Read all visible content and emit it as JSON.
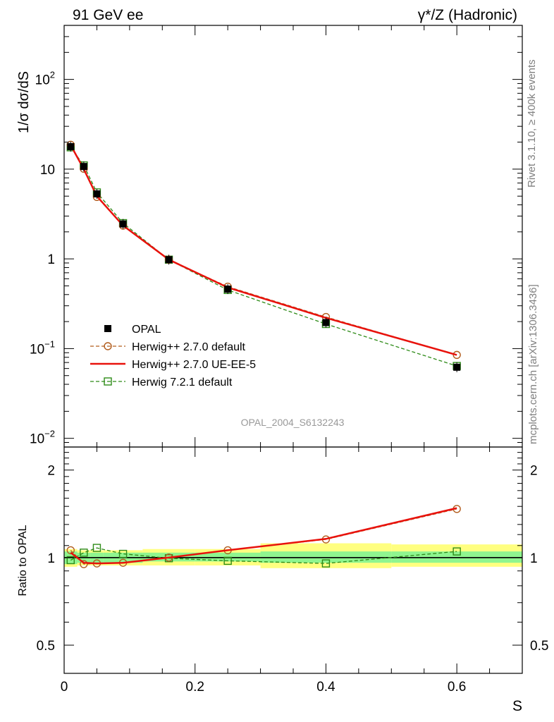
{
  "header": {
    "left": "91 GeV ee",
    "right": "γ*/Z (Hadronic)"
  },
  "side_labels": {
    "rivet": "Rivet 3.1.10, ≥ 400k events",
    "source": "mcplots.cern.ch [arXiv:1306.3436]"
  },
  "analysis_label": "OPAL_2004_S6132243",
  "colors": {
    "data": "#000000",
    "herwigpp_default": "#b25d1e",
    "herwigpp_ueee5": "#e8120c",
    "herwig7": "#2e8b18",
    "band_inner": "#8ff58f",
    "band_outer": "#ffff80"
  },
  "chart_data": [
    {
      "type": "line",
      "panel": "main",
      "ylabel": "1/σ dσ/dS",
      "yscale": "log",
      "xlim": [
        0,
        0.7
      ],
      "ylim": [
        0.008,
        400
      ],
      "yticks": [
        {
          "value": 0.01,
          "base": "10",
          "exp": "−2"
        },
        {
          "value": 0.1,
          "base": "10",
          "exp": "−1"
        },
        {
          "value": 1,
          "base": "1",
          "exp": ""
        },
        {
          "value": 10,
          "base": "10",
          "exp": ""
        },
        {
          "value": 100,
          "base": "10",
          "exp": "2"
        }
      ],
      "x": [
        0.01,
        0.03,
        0.05,
        0.09,
        0.16,
        0.25,
        0.4,
        0.6
      ],
      "series": [
        {
          "name": "OPAL",
          "style": "data",
          "values": [
            17.8,
            10.7,
            5.3,
            2.45,
            0.98,
            0.46,
            0.195,
            0.062
          ]
        },
        {
          "name": "Herwig++ 2.7.0 default",
          "style": "dashed-circle",
          "values": [
            18.7,
            10.1,
            4.9,
            2.35,
            0.98,
            0.49,
            0.225,
            0.085
          ]
        },
        {
          "name": "Herwig++ 2.7.0 UE-EE-5",
          "style": "solid",
          "values": [
            18.5,
            10.0,
            5.0,
            2.35,
            0.98,
            0.48,
            0.22,
            0.085
          ]
        },
        {
          "name": "Herwig 7.2.1 default",
          "style": "dashed-square",
          "values": [
            17.5,
            11.0,
            5.5,
            2.5,
            0.98,
            0.45,
            0.188,
            0.064
          ]
        }
      ]
    },
    {
      "type": "line",
      "panel": "ratio",
      "xlabel": "S",
      "ylabel": "Ratio to OPAL",
      "yscale": "log",
      "xlim": [
        0,
        0.7
      ],
      "ylim": [
        0.4,
        2.4
      ],
      "yticks": [
        {
          "value": 0.5,
          "label": "0.5"
        },
        {
          "value": 1,
          "label": "1"
        },
        {
          "value": 2,
          "label": "2"
        }
      ],
      "xticks": [
        {
          "value": 0,
          "label": "0"
        },
        {
          "value": 0.2,
          "label": "0.2"
        },
        {
          "value": 0.4,
          "label": "0.4"
        },
        {
          "value": 0.6,
          "label": "0.6"
        }
      ],
      "x": [
        0.01,
        0.03,
        0.05,
        0.09,
        0.16,
        0.25,
        0.4,
        0.6
      ],
      "bands": [
        {
          "x0": 0.0,
          "x1": 0.02,
          "inner": [
            0.95,
            1.05
          ],
          "outer": [
            0.93,
            1.07
          ]
        },
        {
          "x0": 0.02,
          "x1": 0.04,
          "inner": [
            0.96,
            1.04
          ],
          "outer": [
            0.94,
            1.06
          ]
        },
        {
          "x0": 0.04,
          "x1": 0.06,
          "inner": [
            0.96,
            1.04
          ],
          "outer": [
            0.94,
            1.06
          ]
        },
        {
          "x0": 0.06,
          "x1": 0.12,
          "inner": [
            0.96,
            1.04
          ],
          "outer": [
            0.94,
            1.06
          ]
        },
        {
          "x0": 0.12,
          "x1": 0.2,
          "inner": [
            0.97,
            1.04
          ],
          "outer": [
            0.94,
            1.07
          ]
        },
        {
          "x0": 0.2,
          "x1": 0.3,
          "inner": [
            0.97,
            1.04
          ],
          "outer": [
            0.94,
            1.07
          ]
        },
        {
          "x0": 0.3,
          "x1": 0.5,
          "inner": [
            0.96,
            1.05
          ],
          "outer": [
            0.92,
            1.12
          ]
        },
        {
          "x0": 0.5,
          "x1": 0.7,
          "inner": [
            0.96,
            1.05
          ],
          "outer": [
            0.93,
            1.11
          ]
        }
      ],
      "series": [
        {
          "name": "Herwig++ 2.7.0 default",
          "style": "dashed-circle",
          "values": [
            1.06,
            0.95,
            0.955,
            0.96,
            1.0,
            1.06,
            1.155,
            1.47
          ]
        },
        {
          "name": "Herwig++ 2.7.0 UE-EE-5",
          "style": "solid",
          "values": [
            1.04,
            0.96,
            0.955,
            0.96,
            1.0,
            1.06,
            1.16,
            1.48
          ]
        },
        {
          "name": "Herwig 7.2.1 default",
          "style": "dashed-square",
          "values": [
            0.98,
            1.04,
            1.08,
            1.03,
            0.995,
            0.975,
            0.955,
            1.05
          ]
        }
      ]
    }
  ]
}
